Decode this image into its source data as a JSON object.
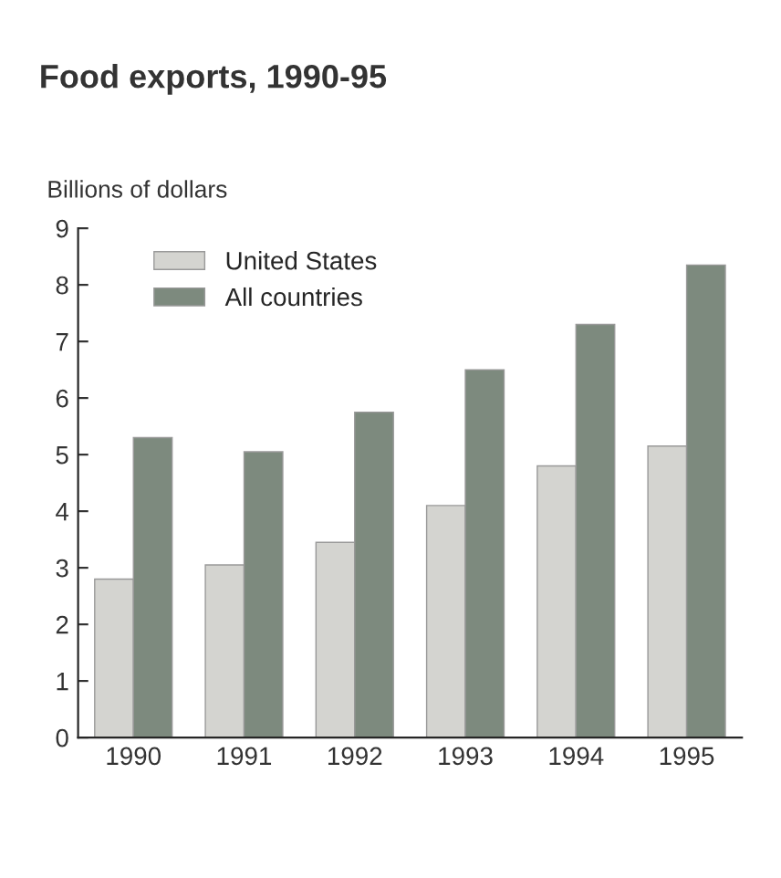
{
  "chart_data": {
    "type": "bar",
    "title": "Food exports, 1990-95",
    "ylabel": "Billions of dollars",
    "categories": [
      "1990",
      "1991",
      "1992",
      "1993",
      "1994",
      "1995"
    ],
    "series": [
      {
        "name": "United States",
        "color": "#d4d4d0",
        "values": [
          2.8,
          3.05,
          3.45,
          4.1,
          4.8,
          5.15
        ]
      },
      {
        "name": "All countries",
        "color": "#7d8a7e",
        "values": [
          5.3,
          5.05,
          5.75,
          6.5,
          7.3,
          8.35
        ]
      }
    ],
    "ylim": [
      0,
      9
    ],
    "yticks": [
      0,
      1,
      2,
      3,
      4,
      5,
      6,
      7,
      8,
      9
    ],
    "grid": false,
    "legend": "top left"
  }
}
